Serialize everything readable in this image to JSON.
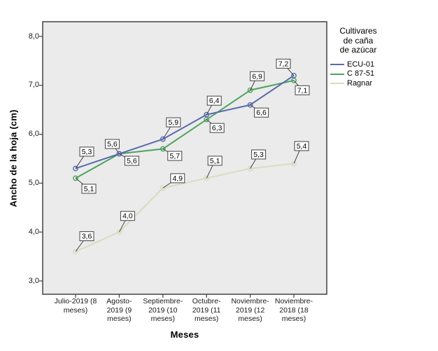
{
  "chart_data": {
    "type": "line",
    "title": "",
    "xlabel": "Meses",
    "ylabel": "Ancho de la hoja (cm)",
    "categories": [
      "Julio-2019 (8 meses)",
      "Agosto-2019 (9 meses)",
      "Septiembre-2019 (10 meses)",
      "Octubre-2019 (11 meses)",
      "Noviembre-2019 (12 meses)",
      "Noviembre-2018 (18 meses)"
    ],
    "x_tick_lines": [
      [
        "Julio-2019 (8",
        "meses)"
      ],
      [
        "Agosto-",
        "2019 (9",
        "meses)"
      ],
      [
        "Septiembre-",
        "2019 (10",
        "meses)"
      ],
      [
        "Octubre-",
        "2019 (11",
        "meses)"
      ],
      [
        "Noviembre-",
        "2019 (12",
        "meses)"
      ],
      [
        "Noviembre-",
        "2018 (18",
        "meses)"
      ]
    ],
    "y_ticks": [
      {
        "label": "8,0",
        "value": 8.0
      },
      {
        "label": "7,0",
        "value": 7.0
      },
      {
        "label": "6,0",
        "value": 6.0
      },
      {
        "label": "5,0",
        "value": 5.0
      },
      {
        "label": "4,0",
        "value": 4.0
      },
      {
        "label": "3,0",
        "value": 3.0
      }
    ],
    "ylim": [
      2.7,
      8.3
    ],
    "grid": false,
    "legend": {
      "title_lines": [
        "Cultivares",
        "de caña",
        "de azúcar"
      ],
      "position": "right"
    },
    "series": [
      {
        "name": "ECU-01",
        "color": "#5A69AE",
        "values": [
          5.3,
          5.6,
          5.9,
          6.4,
          6.6,
          7.2
        ],
        "point_labels": [
          "5,3",
          "5,6",
          "5,9",
          "6,4",
          "6,6",
          "7,2"
        ],
        "label_offsets": [
          [
            16,
            -24
          ],
          [
            -10,
            -14
          ],
          [
            15,
            -24
          ],
          [
            11,
            -20
          ],
          [
            16,
            11
          ],
          [
            -15,
            -17
          ]
        ]
      },
      {
        "name": "C 87-51",
        "color": "#4EA35F",
        "values": [
          5.1,
          5.6,
          5.7,
          6.3,
          6.9,
          7.1
        ],
        "point_labels": [
          "5,1",
          "5,6",
          "5,7",
          "6,3",
          "6,9",
          "7,1"
        ],
        "label_offsets": [
          [
            19,
            15
          ],
          [
            18,
            10
          ],
          [
            17,
            10
          ],
          [
            15,
            12
          ],
          [
            10,
            -20
          ],
          [
            12,
            14
          ]
        ]
      },
      {
        "name": "Ragnar",
        "color": "#DBDAC2",
        "values": [
          3.6,
          4.0,
          4.9,
          5.1,
          5.3,
          5.4
        ],
        "point_labels": [
          "3,6",
          "4,0",
          "4,9",
          "5,1",
          "5,3",
          "5,4"
        ],
        "label_offsets": [
          [
            16,
            -22
          ],
          [
            12,
            -23
          ],
          [
            21,
            -14
          ],
          [
            12,
            -25
          ],
          [
            12,
            -20
          ],
          [
            11,
            -25
          ]
        ]
      }
    ]
  },
  "colors": {
    "plot_bg": "#EBEBEB",
    "frame": "#424242",
    "label_box_bg": "#FFFFFF",
    "label_box_border": "#424242",
    "text": "#000000"
  }
}
